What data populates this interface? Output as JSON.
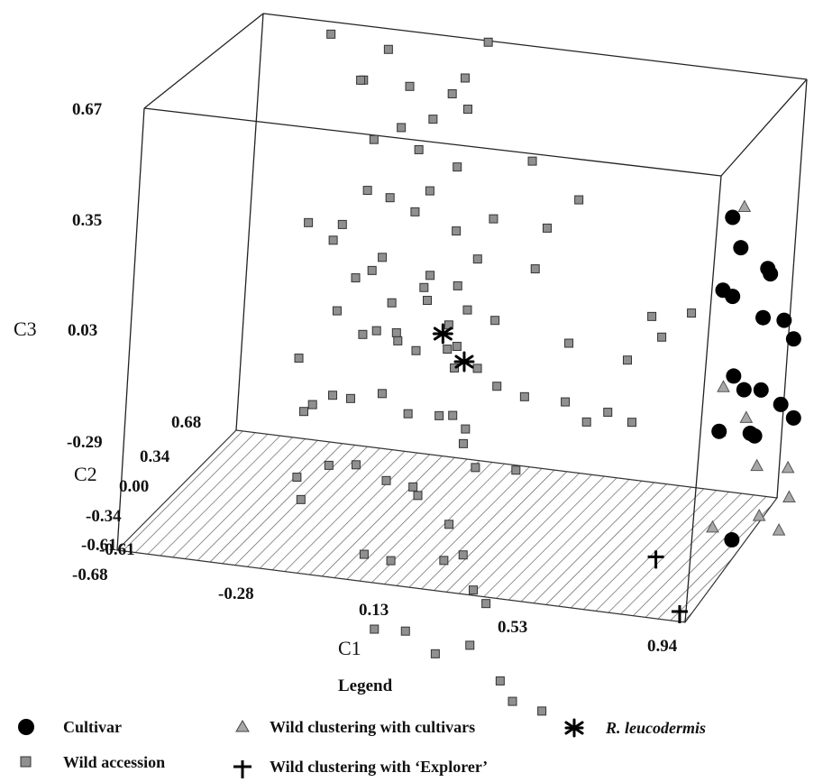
{
  "chart_data": {
    "type": "scatter",
    "projection": "3d-box",
    "axes": {
      "c1": {
        "label": "C1",
        "ticks": [
          "-0.68",
          "-0.28",
          "0.13",
          "0.53",
          "0.94"
        ],
        "range": [
          -0.68,
          0.94
        ]
      },
      "c2": {
        "label": "C2",
        "ticks": [
          "-0.61",
          "-0.34",
          "0.00",
          "0.34",
          "0.68"
        ],
        "range": [
          -0.68,
          0.68
        ]
      },
      "c3": {
        "label": "C3",
        "ticks": [
          "0.67",
          "0.35",
          "0.03",
          "-0.29",
          "-0.61"
        ],
        "range": [
          -0.61,
          0.67
        ]
      }
    },
    "legend": {
      "title": "Legend",
      "entries": [
        {
          "key": "cultivar",
          "label": "Cultivar",
          "italic": false
        },
        {
          "key": "wild_cultivar",
          "label": "Wild clustering with cultivars",
          "italic": false
        },
        {
          "key": "leucodermis",
          "label": "R. leucodermis",
          "italic": true
        },
        {
          "key": "wild",
          "label": "Wild accession",
          "italic": false
        },
        {
          "key": "wild_explorer",
          "label": "Wild clustering with ‘Explorer’",
          "italic": false
        }
      ]
    },
    "series": [
      {
        "key": "wild",
        "marker": "square",
        "color": "#909090",
        "points": [
          [
            -0.35,
            0.55,
            0.48
          ],
          [
            -0.3,
            0.5,
            0.8
          ],
          [
            -0.22,
            0.52,
            0.75
          ],
          [
            -0.3,
            0.3,
            0.55
          ],
          [
            -0.16,
            0.3,
            0.55
          ],
          [
            -0.05,
            0.35,
            0.53
          ],
          [
            0.0,
            0.28,
            0.6
          ],
          [
            0.05,
            0.32,
            0.7
          ],
          [
            -0.1,
            0.2,
            0.4
          ],
          [
            -0.28,
            0.42,
            0.35
          ],
          [
            -0.2,
            0.4,
            0.4
          ],
          [
            -0.15,
            0.1,
            0.28
          ],
          [
            -0.25,
            0.25,
            0.25
          ],
          [
            -0.1,
            0.2,
            0.22
          ],
          [
            -0.05,
            0.15,
            0.3
          ],
          [
            0.0,
            0.25,
            0.35
          ],
          [
            0.1,
            0.3,
            0.2
          ],
          [
            0.02,
            0.2,
            0.18
          ],
          [
            0.12,
            0.05,
            0.15
          ],
          [
            -0.4,
            0.2,
            0.15
          ],
          [
            -0.35,
            0.4,
            0.1
          ],
          [
            -0.35,
            0.3,
            0.08
          ],
          [
            -0.28,
            0.3,
            -0.02
          ],
          [
            -0.15,
            0.2,
            -0.05
          ],
          [
            -0.05,
            0.2,
            -0.03
          ],
          [
            -0.05,
            0.15,
            0.02
          ],
          [
            0.05,
            0.05,
            -0.05
          ],
          [
            0.1,
            0.05,
            0.0
          ],
          [
            0.18,
            0.05,
            -0.02
          ],
          [
            0.25,
            0.2,
            0.1
          ],
          [
            0.3,
            0.1,
            0.25
          ],
          [
            0.4,
            0.02,
            -0.05
          ],
          [
            -0.35,
            0.4,
            -0.15
          ],
          [
            -0.25,
            0.3,
            -0.18
          ],
          [
            -0.2,
            0.25,
            -0.15
          ],
          [
            -0.12,
            0.15,
            -0.12
          ],
          [
            -0.05,
            0.1,
            -0.15
          ],
          [
            0.05,
            0.05,
            -0.12
          ],
          [
            0.1,
            -0.05,
            -0.08
          ],
          [
            0.15,
            0.0,
            -0.15
          ],
          [
            0.22,
            -0.05,
            -0.18
          ],
          [
            0.3,
            -0.05,
            -0.2
          ],
          [
            0.4,
            0.02,
            -0.22
          ],
          [
            0.48,
            -0.05,
            -0.25
          ],
          [
            0.55,
            -0.1,
            -0.2
          ],
          [
            0.62,
            -0.1,
            -0.22
          ],
          [
            0.55,
            0.1,
            -0.1
          ],
          [
            0.6,
            0.15,
            0.02
          ],
          [
            0.7,
            0.2,
            0.03
          ],
          [
            0.62,
            0.2,
            -0.05
          ],
          [
            -0.45,
            0.4,
            -0.3
          ],
          [
            -0.38,
            0.3,
            -0.4
          ],
          [
            -0.32,
            0.28,
            -0.36
          ],
          [
            -0.25,
            0.2,
            -0.34
          ],
          [
            -0.15,
            0.15,
            -0.3
          ],
          [
            -0.05,
            0.05,
            -0.32
          ],
          [
            0.05,
            0.0,
            -0.3
          ],
          [
            0.1,
            -0.05,
            -0.28
          ],
          [
            0.15,
            -0.1,
            -0.3
          ],
          [
            -0.45,
            0.5,
            -0.48
          ],
          [
            -0.3,
            0.2,
            -0.54
          ],
          [
            -0.2,
            0.1,
            -0.5
          ],
          [
            -0.1,
            0.05,
            -0.52
          ],
          [
            0.0,
            -0.05,
            -0.5
          ],
          [
            0.05,
            -0.2,
            -0.48
          ],
          [
            0.12,
            -0.1,
            -0.58
          ],
          [
            0.2,
            -0.25,
            -0.62
          ],
          [
            -0.15,
            0.05,
            -0.74
          ],
          [
            -0.05,
            -0.05,
            -0.72
          ],
          [
            0.1,
            -0.05,
            -0.7
          ],
          [
            0.2,
            -0.1,
            -0.76
          ],
          [
            0.25,
            -0.15,
            -0.78
          ],
          [
            -0.05,
            -0.2,
            -0.88
          ],
          [
            0.05,
            -0.25,
            -0.86
          ],
          [
            0.15,
            -0.3,
            -0.9
          ],
          [
            0.2,
            -0.1,
            -0.92
          ],
          [
            0.35,
            -0.35,
            -0.94
          ],
          [
            0.4,
            -0.4,
            -0.98
          ],
          [
            0.45,
            -0.25,
            -1.04
          ],
          [
            0.15,
            0.05,
            -0.45
          ],
          [
            0.1,
            0.1,
            -0.4
          ],
          [
            -0.2,
            0.15,
            0.05
          ],
          [
            -0.15,
            0.05,
            0.12
          ],
          [
            0.0,
            0.0,
            0.1
          ],
          [
            0.08,
            0.0,
            0.08
          ],
          [
            -0.08,
            0.0,
            -0.1
          ],
          [
            0.02,
            0.25,
            0.52
          ],
          [
            0.2,
            0.3,
            0.38
          ],
          [
            0.35,
            0.25,
            0.3
          ],
          [
            -0.1,
            0.35,
            0.45
          ],
          [
            -0.25,
            0.4,
            0.62
          ],
          [
            -0.4,
            0.25,
            -0.6
          ],
          [
            -0.35,
            0.1,
            -0.62
          ],
          [
            0.3,
            -0.1,
            -0.4
          ],
          [
            -0.45,
            0.55,
            0.6
          ],
          [
            0.05,
            0.15,
            -0.2
          ]
        ]
      },
      {
        "key": "cultivar",
        "marker": "circle",
        "color": "#000000",
        "points": [
          [
            0.8,
            0.2,
            0.32
          ],
          [
            0.84,
            0.15,
            0.25
          ],
          [
            0.92,
            0.15,
            0.2
          ],
          [
            0.94,
            0.1,
            0.2
          ],
          [
            0.82,
            0.05,
            0.15
          ],
          [
            0.86,
            0.0,
            0.15
          ],
          [
            0.95,
            0.0,
            0.1
          ],
          [
            1.01,
            0.0,
            0.1
          ],
          [
            1.04,
            0.0,
            0.05
          ],
          [
            0.9,
            -0.1,
            -0.05
          ],
          [
            0.92,
            -0.05,
            -0.1
          ],
          [
            0.98,
            -0.1,
            -0.08
          ],
          [
            1.05,
            -0.15,
            -0.1
          ],
          [
            1.1,
            -0.2,
            -0.12
          ],
          [
            0.88,
            -0.15,
            -0.2
          ],
          [
            0.98,
            -0.2,
            -0.18
          ],
          [
            0.9,
            0.2,
            -0.3
          ],
          [
            0.9,
            0.0,
            -0.55
          ]
        ]
      },
      {
        "key": "wild_cultivar",
        "marker": "triangle",
        "color": "#a8a8a8",
        "points": [
          [
            0.82,
            0.25,
            0.34
          ],
          [
            0.78,
            0.3,
            -0.2
          ],
          [
            0.85,
            0.3,
            -0.28
          ],
          [
            0.9,
            0.25,
            -0.4
          ],
          [
            0.8,
            0.2,
            -0.3
          ],
          [
            1.0,
            0.2,
            -0.38
          ],
          [
            1.02,
            0.15,
            -0.45
          ],
          [
            0.95,
            0.1,
            -0.5
          ],
          [
            0.82,
            0.1,
            -0.55
          ],
          [
            1.02,
            0.05,
            -0.52
          ]
        ]
      },
      {
        "key": "leucodermis",
        "marker": "asterisk",
        "color": "#000000",
        "points": [
          [
            0.1,
            0.05,
            -0.15
          ],
          [
            0.0,
            0.2,
            -0.12
          ]
        ]
      },
      {
        "key": "wild_explorer",
        "marker": "cross",
        "color": "#000000",
        "points": [
          [
            0.7,
            -0.05,
            -0.62
          ],
          [
            0.8,
            -0.15,
            -0.74
          ]
        ]
      }
    ]
  }
}
